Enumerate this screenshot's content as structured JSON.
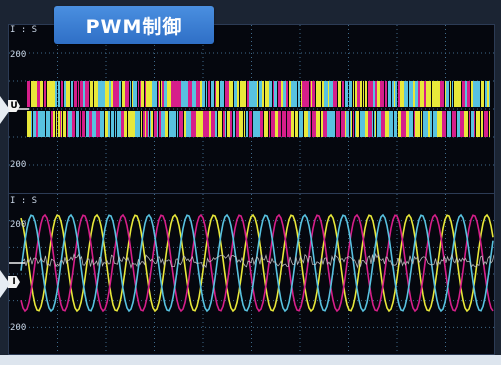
{
  "banner": {
    "title": "PWM制御",
    "color": "#3a7fd6"
  },
  "top_panel": {
    "corner_label": "I : S",
    "tick_upper": "200",
    "tick_lower": "200",
    "channel_marker": "U",
    "trace_colors": [
      "#e8e83a",
      "#d61f8a",
      "#58c2e0"
    ]
  },
  "bottom_panel": {
    "corner_label": "I : S",
    "tick_upper": "200",
    "tick_lower": "200",
    "channel_marker": "I",
    "sine_colors": [
      "#e8e83a",
      "#d61f8a",
      "#58c2e0"
    ],
    "noise_color": "#c8c8c8"
  }
}
